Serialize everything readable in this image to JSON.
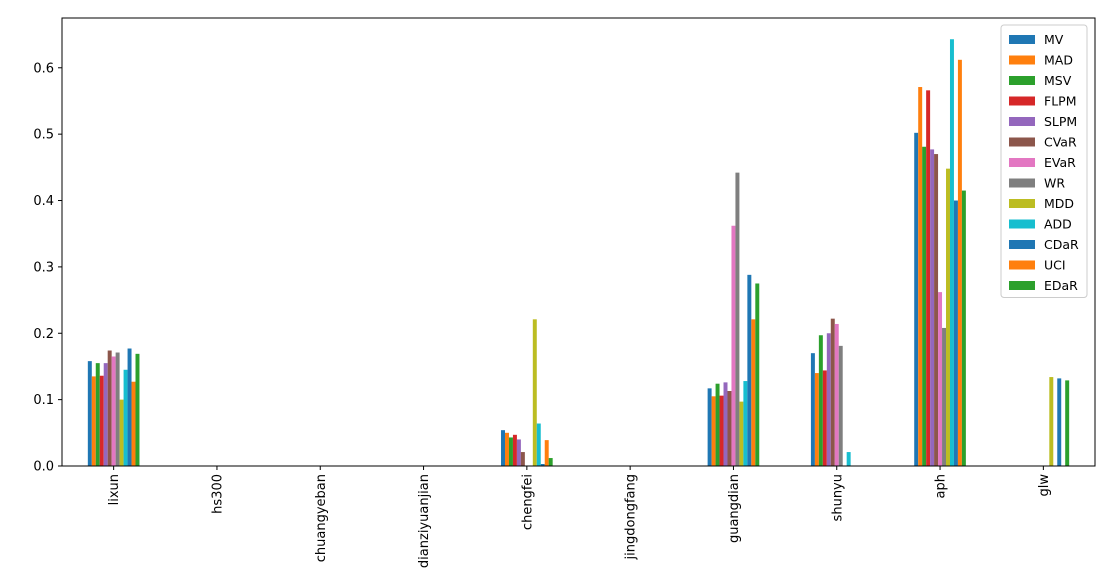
{
  "chart_data": {
    "type": "bar",
    "title": "",
    "xlabel": "",
    "ylabel": "",
    "ylim": [
      0,
      0.675
    ],
    "yticks": [
      "0.0",
      "0.1",
      "0.2",
      "0.3",
      "0.4",
      "0.5",
      "0.6"
    ],
    "grid": false,
    "legend_position": "top-right",
    "categories": [
      "lixun",
      "hs300",
      "chuangyeban",
      "dianziyuanjian",
      "chengfei",
      "jingdongfang",
      "guangdian",
      "shunyu",
      "aph",
      "glw"
    ],
    "series": [
      {
        "name": "MV",
        "color": "#1f77b4",
        "values": [
          0.158,
          0,
          0,
          0,
          0.054,
          0,
          0.117,
          0.17,
          0.502,
          0
        ]
      },
      {
        "name": "MAD",
        "color": "#ff7f0e",
        "values": [
          0.135,
          0,
          0,
          0,
          0.05,
          0,
          0.105,
          0.14,
          0.571,
          0
        ]
      },
      {
        "name": "MSV",
        "color": "#2ca02c",
        "values": [
          0.155,
          0,
          0,
          0,
          0.043,
          0,
          0.124,
          0.197,
          0.481,
          0
        ]
      },
      {
        "name": "FLPM",
        "color": "#d62728",
        "values": [
          0.136,
          0,
          0,
          0,
          0.047,
          0,
          0.106,
          0.144,
          0.566,
          0
        ]
      },
      {
        "name": "SLPM",
        "color": "#9467bd",
        "values": [
          0.155,
          0,
          0,
          0,
          0.04,
          0,
          0.126,
          0.2,
          0.477,
          0
        ]
      },
      {
        "name": "CVaR",
        "color": "#8c564b",
        "values": [
          0.174,
          0,
          0,
          0,
          0.021,
          0,
          0.113,
          0.222,
          0.47,
          0
        ]
      },
      {
        "name": "EVaR",
        "color": "#e377c2",
        "values": [
          0.165,
          0,
          0,
          0,
          0,
          0,
          0.362,
          0.214,
          0.262,
          0
        ]
      },
      {
        "name": "WR",
        "color": "#7f7f7f",
        "values": [
          0.171,
          0,
          0,
          0,
          0,
          0,
          0.442,
          0.181,
          0.208,
          0
        ]
      },
      {
        "name": "MDD",
        "color": "#bcbd22",
        "values": [
          0.1,
          0,
          0,
          0,
          0.221,
          0,
          0.097,
          0,
          0.448,
          0.134
        ]
      },
      {
        "name": "ADD",
        "color": "#17becf",
        "values": [
          0.145,
          0,
          0,
          0,
          0.064,
          0,
          0.128,
          0.021,
          0.643,
          0
        ]
      },
      {
        "name": "CDaR",
        "color": "#1f77b4",
        "values": [
          0.177,
          0,
          0,
          0,
          0.003,
          0,
          0.288,
          0,
          0.4,
          0.132
        ]
      },
      {
        "name": "UCI",
        "color": "#ff7f0e",
        "values": [
          0.127,
          0,
          0,
          0,
          0.039,
          0,
          0.221,
          0,
          0.612,
          0
        ]
      },
      {
        "name": "EDaR",
        "color": "#2ca02c",
        "values": [
          0.169,
          0,
          0,
          0,
          0.012,
          0,
          0.275,
          0,
          0.415,
          0.129
        ]
      }
    ]
  }
}
